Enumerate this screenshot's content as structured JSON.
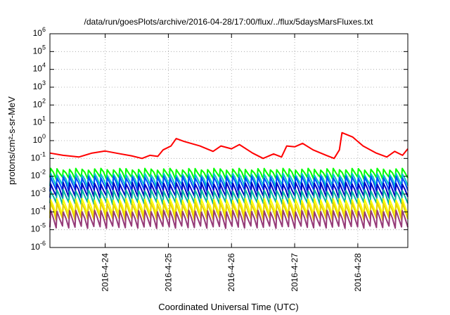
{
  "chart_data": {
    "type": "line",
    "title": "/data/run/goesPlots/archive/2016-04-28/17:00/flux/../flux/5daysMarsFluxes.txt",
    "xlabel": "Coordinated Universal Time (UTC)",
    "ylabel": "protons/cm²-s-sr-MeV",
    "y_scale": "log",
    "ylim": [
      1e-06,
      1000000
    ],
    "xlim": [
      "2016-04-23T03:00",
      "2016-04-28T19:00"
    ],
    "grid": true,
    "legend": "none",
    "y_ticks": [
      {
        "value": 1e-06,
        "base": "10",
        "exp": "-6"
      },
      {
        "value": 1e-05,
        "base": "10",
        "exp": "-5"
      },
      {
        "value": 0.0001,
        "base": "10",
        "exp": "-4"
      },
      {
        "value": 0.001,
        "base": "10",
        "exp": "-3"
      },
      {
        "value": 0.01,
        "base": "10",
        "exp": "-2"
      },
      {
        "value": 0.1,
        "base": "10",
        "exp": "-1"
      },
      {
        "value": 1,
        "base": "10",
        "exp": "0"
      },
      {
        "value": 10,
        "base": "10",
        "exp": "1"
      },
      {
        "value": 100,
        "base": "10",
        "exp": "2"
      },
      {
        "value": 1000,
        "base": "10",
        "exp": "3"
      },
      {
        "value": 10000,
        "base": "10",
        "exp": "4"
      },
      {
        "value": 100000,
        "base": "10",
        "exp": "5"
      },
      {
        "value": 1000000,
        "base": "10",
        "exp": "6"
      }
    ],
    "x_ticks": [
      {
        "value": "2016-04-24",
        "label": "2016-4-24"
      },
      {
        "value": "2016-04-25",
        "label": "2016-4-25"
      },
      {
        "value": "2016-04-26",
        "label": "2016-4-26"
      },
      {
        "value": "2016-04-27",
        "label": "2016-4-27"
      },
      {
        "value": "2016-04-28",
        "label": "2016-4-28"
      }
    ],
    "sawtooth": {
      "start": "2016-04-23T03:00",
      "end": "2016-04-28T19:00",
      "teeth": 57
    },
    "series": [
      {
        "color": "#ff0000",
        "points": [
          [
            "2016-04-23T03:00",
            0.2
          ],
          [
            "2016-04-23T08:00",
            0.15
          ],
          [
            "2016-04-23T14:00",
            0.12
          ],
          [
            "2016-04-23T19:00",
            0.2
          ],
          [
            "2016-04-24T00:00",
            0.26
          ],
          [
            "2016-04-24T05:00",
            0.19
          ],
          [
            "2016-04-24T10:00",
            0.14
          ],
          [
            "2016-04-24T14:00",
            0.1
          ],
          [
            "2016-04-24T17:00",
            0.15
          ],
          [
            "2016-04-24T20:00",
            0.13
          ],
          [
            "2016-04-24T22:00",
            0.3
          ],
          [
            "2016-04-25T01:00",
            0.5
          ],
          [
            "2016-04-25T03:00",
            1.3
          ],
          [
            "2016-04-25T06:00",
            0.9
          ],
          [
            "2016-04-25T12:00",
            0.5
          ],
          [
            "2016-04-25T17:00",
            0.25
          ],
          [
            "2016-04-25T20:00",
            0.5
          ],
          [
            "2016-04-26T00:00",
            0.35
          ],
          [
            "2016-04-26T03:00",
            0.6
          ],
          [
            "2016-04-26T08:00",
            0.2
          ],
          [
            "2016-04-26T12:00",
            0.1
          ],
          [
            "2016-04-26T16:00",
            0.18
          ],
          [
            "2016-04-26T19:00",
            0.12
          ],
          [
            "2016-04-26T21:00",
            0.5
          ],
          [
            "2016-04-27T00:00",
            0.45
          ],
          [
            "2016-04-27T03:00",
            0.7
          ],
          [
            "2016-04-27T07:00",
            0.3
          ],
          [
            "2016-04-27T12:00",
            0.15
          ],
          [
            "2016-04-27T15:00",
            0.1
          ],
          [
            "2016-04-27T17:00",
            0.3
          ],
          [
            "2016-04-27T18:00",
            2.8
          ],
          [
            "2016-04-27T22:00",
            1.6
          ],
          [
            "2016-04-28T02:00",
            0.5
          ],
          [
            "2016-04-28T07:00",
            0.2
          ],
          [
            "2016-04-28T11:00",
            0.12
          ],
          [
            "2016-04-28T14:00",
            0.25
          ],
          [
            "2016-04-28T17:00",
            0.15
          ],
          [
            "2016-04-28T19:00",
            0.35
          ]
        ]
      },
      {
        "color": "#00ff00",
        "low": 0.008,
        "high": 0.025
      },
      {
        "color": "#00c8c8",
        "low": 0.003,
        "high": 0.013
      },
      {
        "color": "#0050ff",
        "low": 0.0016,
        "high": 0.009
      },
      {
        "color": "#0000c0",
        "low": 0.0007,
        "high": 0.004
      },
      {
        "color": "#00b4a0",
        "low": 0.0003,
        "high": 0.0016
      },
      {
        "color": "#ffff00",
        "low": 7e-05,
        "high": 0.0005
      },
      {
        "color": "#e6d200",
        "low": 4e-05,
        "high": 0.0003
      },
      {
        "color": "#963a78",
        "low": 1.4e-05,
        "high": 0.00011
      }
    ]
  }
}
